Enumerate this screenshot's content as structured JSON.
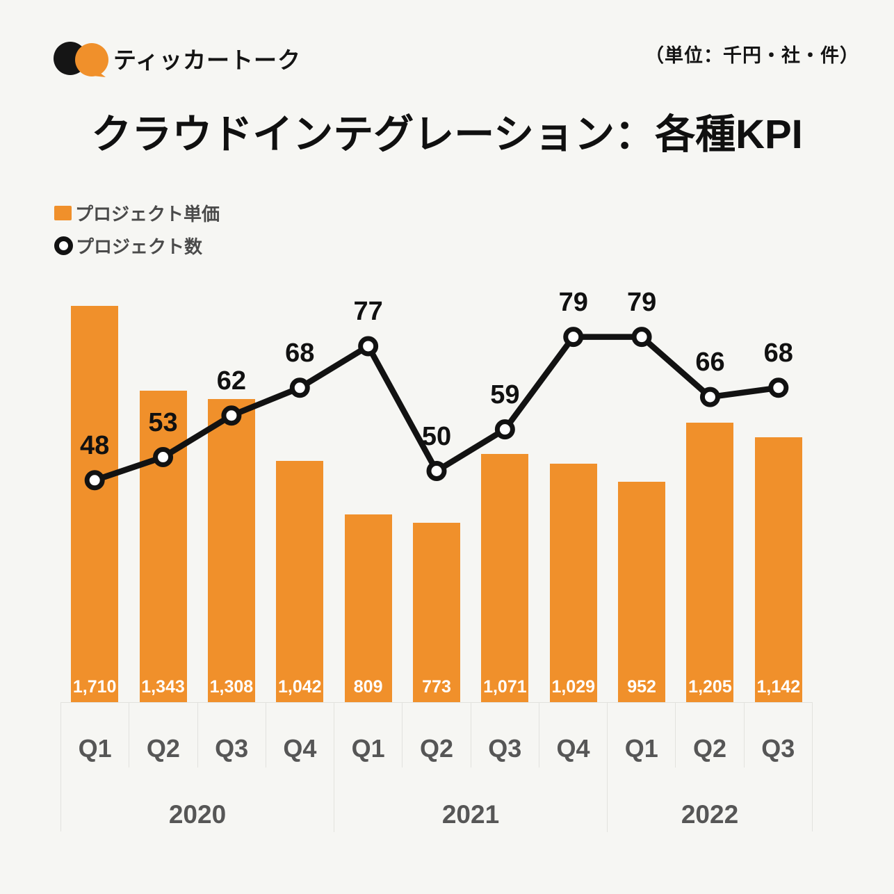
{
  "header": {
    "brand": "ティッカートーク",
    "unit_note": "（単位：千円・社・件）"
  },
  "title": "クラウドインテグレーション：各種KPI",
  "legend": {
    "bar_label": "プロジェクト単価",
    "line_label": "プロジェクト数"
  },
  "colors": {
    "background": "#F6F6F3",
    "bar": "#F0902B",
    "line": "#121212",
    "marker_fill": "#FFFFFF",
    "axis_text": "#565656",
    "border": "#E2E2DE"
  },
  "chart_data": {
    "type": "bar+line",
    "categories": [
      "Q1",
      "Q2",
      "Q3",
      "Q4",
      "Q1",
      "Q2",
      "Q3",
      "Q4",
      "Q1",
      "Q2",
      "Q3"
    ],
    "year_groups": [
      {
        "label": "2020",
        "span": 4
      },
      {
        "label": "2021",
        "span": 4
      },
      {
        "label": "2022",
        "span": 3
      }
    ],
    "series": [
      {
        "name": "プロジェクト単価",
        "type": "bar",
        "values": [
          1710,
          1343,
          1308,
          1042,
          809,
          773,
          1071,
          1029,
          952,
          1205,
          1142
        ],
        "labels": [
          "1,710",
          "1,343",
          "1,308",
          "1,042",
          "809",
          "773",
          "1,071",
          "1,029",
          "952",
          "1,205",
          "1,142"
        ]
      },
      {
        "name": "プロジェクト数",
        "type": "line",
        "values": [
          48,
          53,
          62,
          68,
          77,
          50,
          59,
          79,
          79,
          66,
          68
        ]
      }
    ],
    "ylim_bar": [
      0,
      1710
    ],
    "ylim_line": [
      0,
      79
    ],
    "grid": false,
    "legend_position": "top-left"
  }
}
